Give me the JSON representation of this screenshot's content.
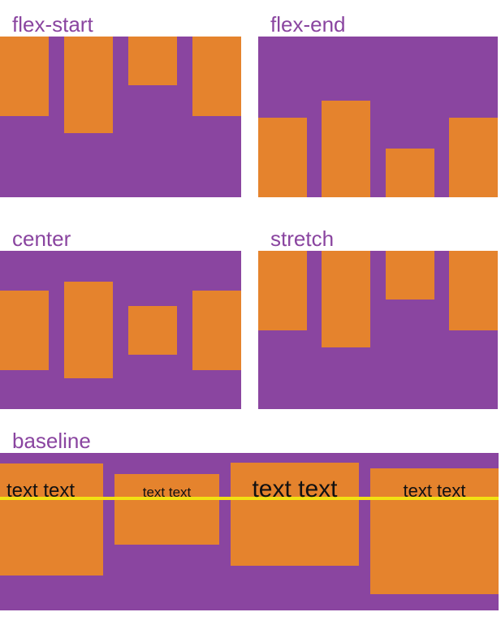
{
  "colors": {
    "container": "#8a45a0",
    "item": "#e5832d",
    "label": "#8a45a0",
    "baseline_line": "#f2e112",
    "item_text": "#111111",
    "background": "#ffffff"
  },
  "panels": [
    {
      "label": "flex-start",
      "align": "flex-start"
    },
    {
      "label": "flex-end",
      "align": "flex-end"
    },
    {
      "label": "center",
      "align": "center"
    },
    {
      "label": "stretch",
      "align": "stretch"
    },
    {
      "label": "baseline",
      "align": "baseline"
    }
  ],
  "baseline_items": [
    {
      "text": "text text"
    },
    {
      "text": "text text"
    },
    {
      "text": "text text"
    },
    {
      "text": "text text"
    }
  ]
}
